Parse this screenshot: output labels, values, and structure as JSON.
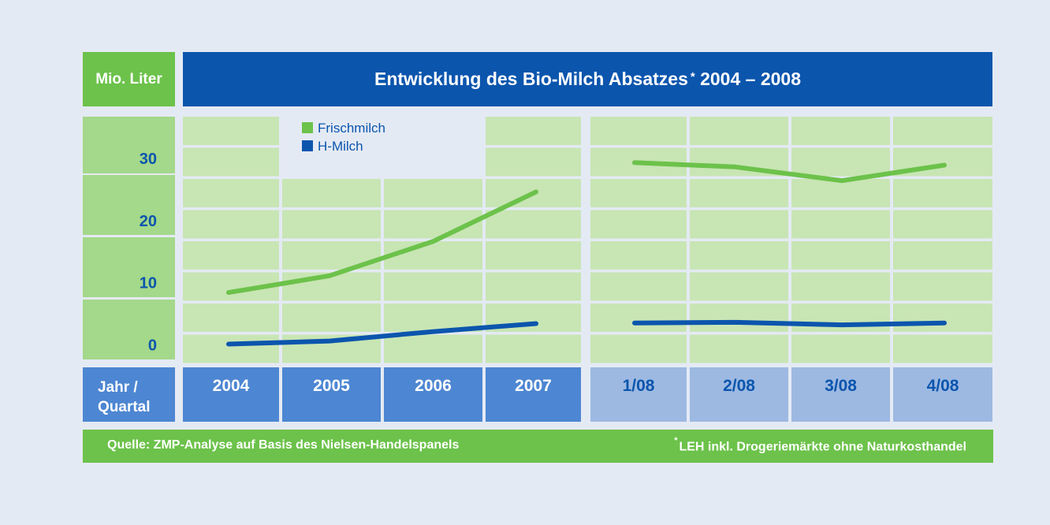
{
  "header": {
    "unit_label": "Mio. Liter",
    "title": "Entwicklung des Bio-Milch Absatzes",
    "title_asterisk": "*",
    "title_range": "2004 – 2008"
  },
  "xaxis": {
    "label_line1": "Jahr /",
    "label_line2": "Quartal"
  },
  "footer": {
    "source": "Quelle: ZMP-Analyse auf Basis des Nielsen-Handelspanels",
    "note_asterisk": "*",
    "note": "LEH inkl. Drogeriemärkte ohne Naturkosthandel"
  },
  "colors": {
    "frischmilch": "#6cc24a",
    "h_milch": "#0b55ad",
    "grid_cell": "#c8e5b4",
    "yaxis_cell": "#a4d88a",
    "year_cell": "#4d86d2",
    "quarter_cell": "#9db9e2"
  },
  "chart_data": {
    "type": "line",
    "title": "Entwicklung des Bio-Milch Absatzes* 2004 – 2008",
    "ylabel": "Mio. Liter",
    "xlabel": "Jahr / Quartal",
    "ylim": [
      0,
      30
    ],
    "yticks": [
      0,
      10,
      20,
      30
    ],
    "grid": true,
    "legend_position": "top-left",
    "categories": [
      "2004",
      "2005",
      "2006",
      "2007",
      "1/08",
      "2/08",
      "3/08",
      "4/08"
    ],
    "series": [
      {
        "name": "Frischmilch",
        "values": [
          8.3,
          11,
          16.5,
          24.5,
          29.2,
          28.5,
          26.3,
          28.8
        ]
      },
      {
        "name": "H-Milch",
        "values": [
          0,
          0.5,
          2,
          3.3,
          3.4,
          3.5,
          3.1,
          3.4
        ]
      }
    ]
  }
}
